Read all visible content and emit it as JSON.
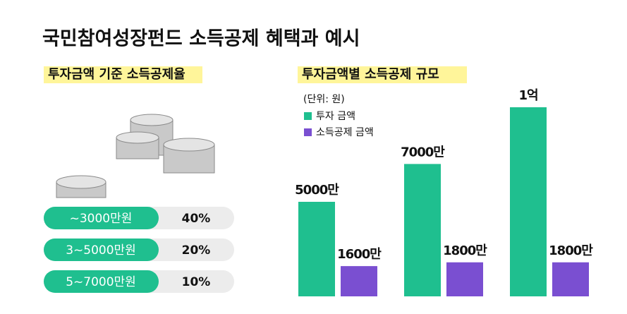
{
  "title": "국민참여성장펀드 소득공제 혜택과 예시",
  "rate_table": {
    "title": "투자금액 기준 소득공제율",
    "rows": [
      [
        "~3000만원",
        "40%"
      ],
      [
        "3~5000만원",
        "20%"
      ],
      [
        "5~7000만원",
        "10%"
      ]
    ]
  },
  "chart_data": {
    "type": "bar",
    "title": "투자금액별 소득공제 규모",
    "unit_note": "(단위: 원)",
    "categories": [
      null,
      null,
      null
    ],
    "series": [
      {
        "name": "투자 금액",
        "color": "#1fbf8f",
        "values": [
          50000000,
          70000000,
          100000000
        ],
        "value_labels": [
          "5000만",
          "7000만",
          "1억"
        ]
      },
      {
        "name": "소득공제 금액",
        "color": "#7a4fd1",
        "values": [
          16000000,
          18000000,
          18000000
        ],
        "value_labels": [
          "1600만",
          "1800만",
          "1800만"
        ]
      }
    ]
  }
}
